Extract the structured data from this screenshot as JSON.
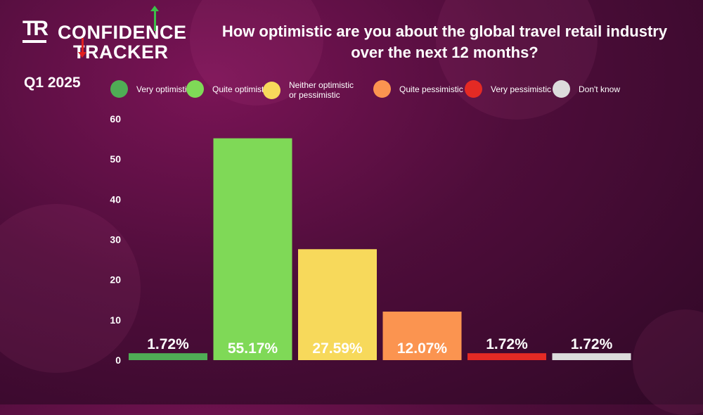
{
  "brand": {
    "tr": "TR",
    "line1": "CONFIDENCE",
    "line2": "TRACKER"
  },
  "period": "Q1 2025",
  "chart_data": {
    "type": "bar",
    "title": "How optimistic are you about the global travel retail industry over the next 12 months?",
    "categories": [
      "Very optimistic",
      "Quite optimistic",
      "Neither optimistic or pessimistic",
      "Quite pessimistic",
      "Very pessimistic",
      "Don't know"
    ],
    "values": [
      1.72,
      55.17,
      27.59,
      12.07,
      1.72,
      1.72
    ],
    "data_labels": [
      "1.72%",
      "55.17%",
      "27.59%",
      "12.07%",
      "1.72%",
      "1.72%"
    ],
    "colors": [
      "#4fad55",
      "#7fd957",
      "#f7d95b",
      "#fb9450",
      "#e42a24",
      "#dcdcdc"
    ],
    "ylim": [
      0,
      60
    ],
    "yticks": [
      0,
      10,
      20,
      30,
      40,
      50,
      60
    ],
    "grid": false,
    "legend_position": "top"
  }
}
